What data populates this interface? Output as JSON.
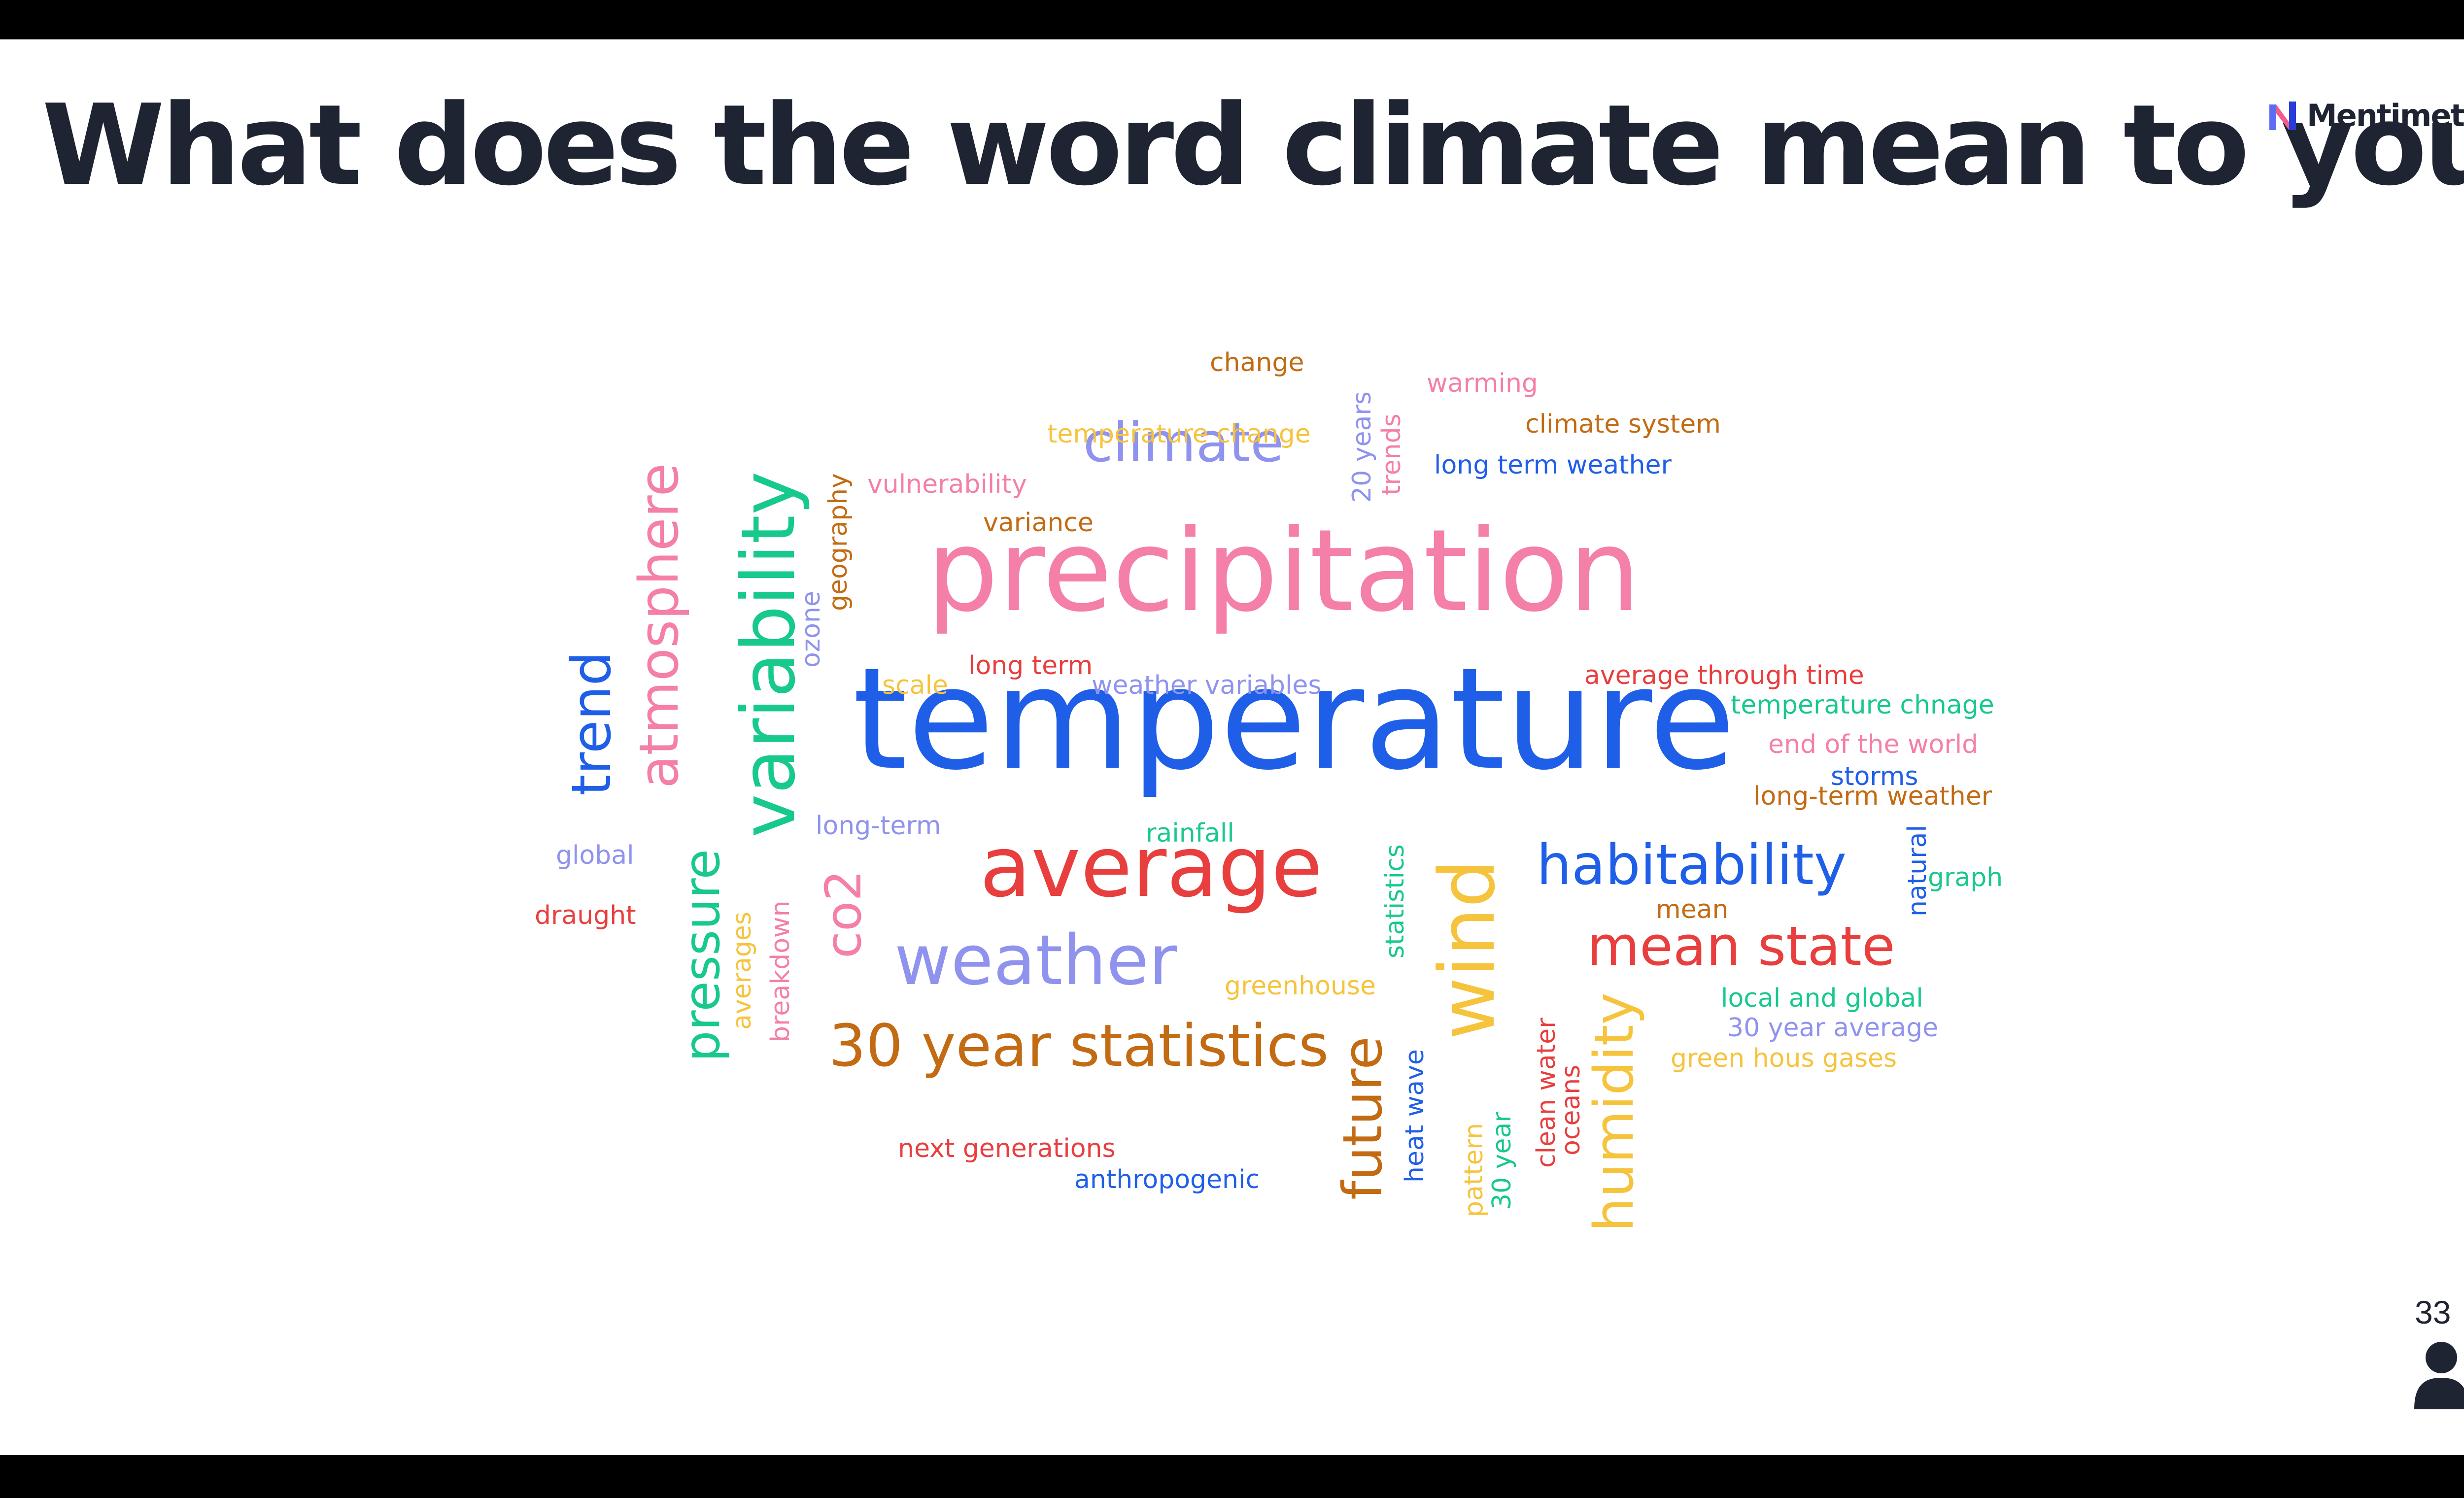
{
  "slide": {
    "title": "What does the word climate mean to you?",
    "brand": "Mentimeter",
    "participant_count": "33"
  },
  "colors": {
    "blue": "#1f5fe8",
    "pink": "#f47fa8",
    "red": "#e83e3e",
    "green": "#17c98a",
    "yellow": "#f6c33c",
    "brown": "#c26b13",
    "lavender": "#8f93ee"
  },
  "words": [
    "temperature",
    "precipitation",
    "average",
    "weather",
    "climate",
    "variability",
    "atmosphere",
    "trend",
    "pressure",
    "wind",
    "habitability",
    "mean state",
    "30 year statistics",
    "future",
    "humidity",
    "co2",
    "change",
    "warming",
    "climate system",
    "long term weather",
    "temperature change",
    "20 years",
    "trends",
    "vulnerability",
    "geography",
    "variance",
    "ozone",
    "long term",
    "scale",
    "weather variables",
    "average through time",
    "temperature chnage",
    "end of the world",
    "storms",
    "long-term weather",
    "long-term",
    "rainfall",
    "global",
    "draught",
    "averages",
    "breakdown",
    "statistics",
    "natural",
    "graph",
    "mean",
    "greenhouse",
    "local and global",
    "30 year average",
    "green hous gases",
    "heat wave",
    "pattern",
    "30 year",
    "clean water",
    "oceans",
    "next generations",
    "anthropogenic"
  ]
}
